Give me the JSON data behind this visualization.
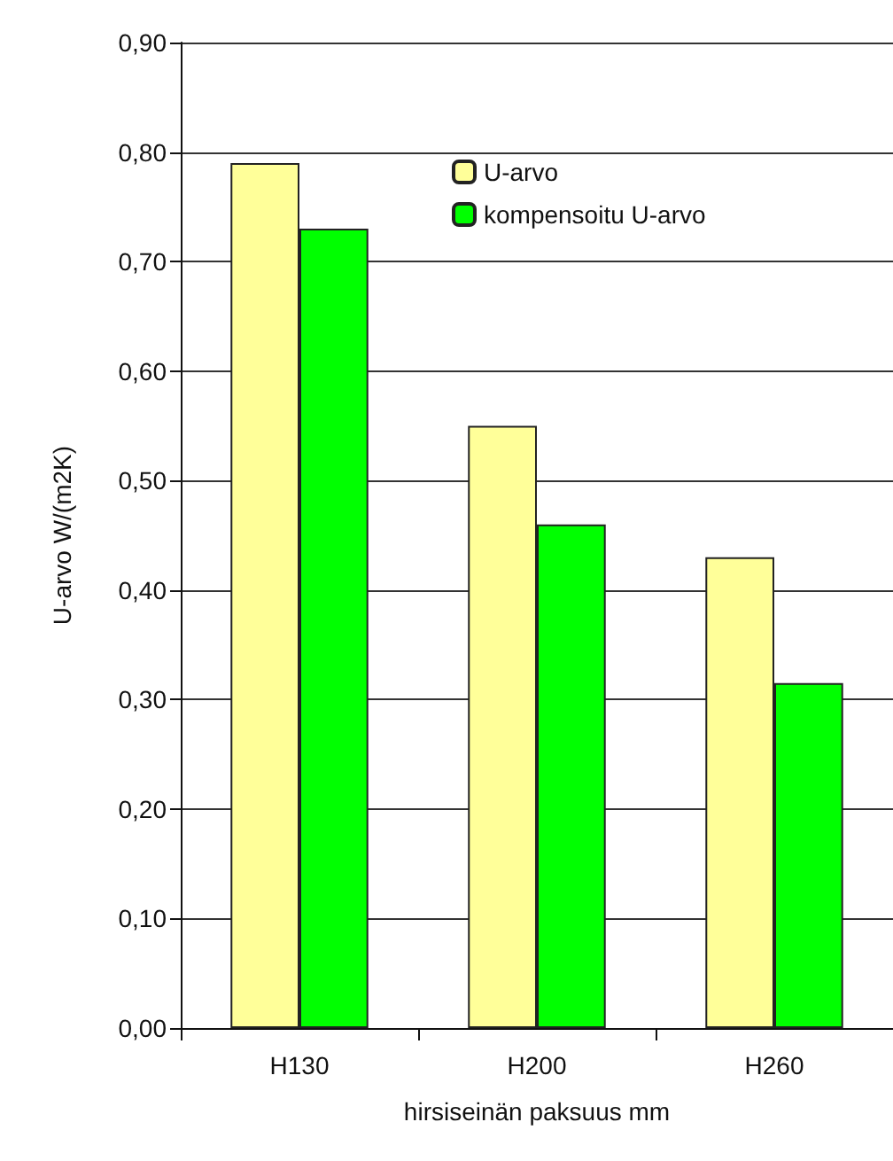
{
  "chart_data": {
    "type": "bar",
    "xlabel": "hirsiseinän paksuus mm",
    "ylabel": "U-arvo W/(m2K)",
    "categories": [
      "H130",
      "H200",
      "H260"
    ],
    "series": [
      {
        "name": "U-arvo",
        "color": "#ffff99",
        "values": [
          0.79,
          0.55,
          0.43
        ]
      },
      {
        "name": "kompensoitu U-arvo",
        "color": "#00ff00",
        "values": [
          0.73,
          0.46,
          0.315
        ]
      }
    ],
    "ylim": [
      0,
      0.9
    ],
    "yticks": [
      {
        "value": 0,
        "label": "0,00"
      },
      {
        "value": 0.1,
        "label": "0,10"
      },
      {
        "value": 0.2,
        "label": "0,20"
      },
      {
        "value": 0.3,
        "label": "0,30"
      },
      {
        "value": 0.4,
        "label": "0,40"
      },
      {
        "value": 0.5,
        "label": "0,50"
      },
      {
        "value": 0.6,
        "label": "0,60"
      },
      {
        "value": 0.7,
        "label": "0,70"
      },
      {
        "value": 0.8,
        "label": "0,80"
      },
      {
        "value": 0.9,
        "label": "0,90"
      }
    ],
    "grid": "y",
    "legend": "top right"
  }
}
